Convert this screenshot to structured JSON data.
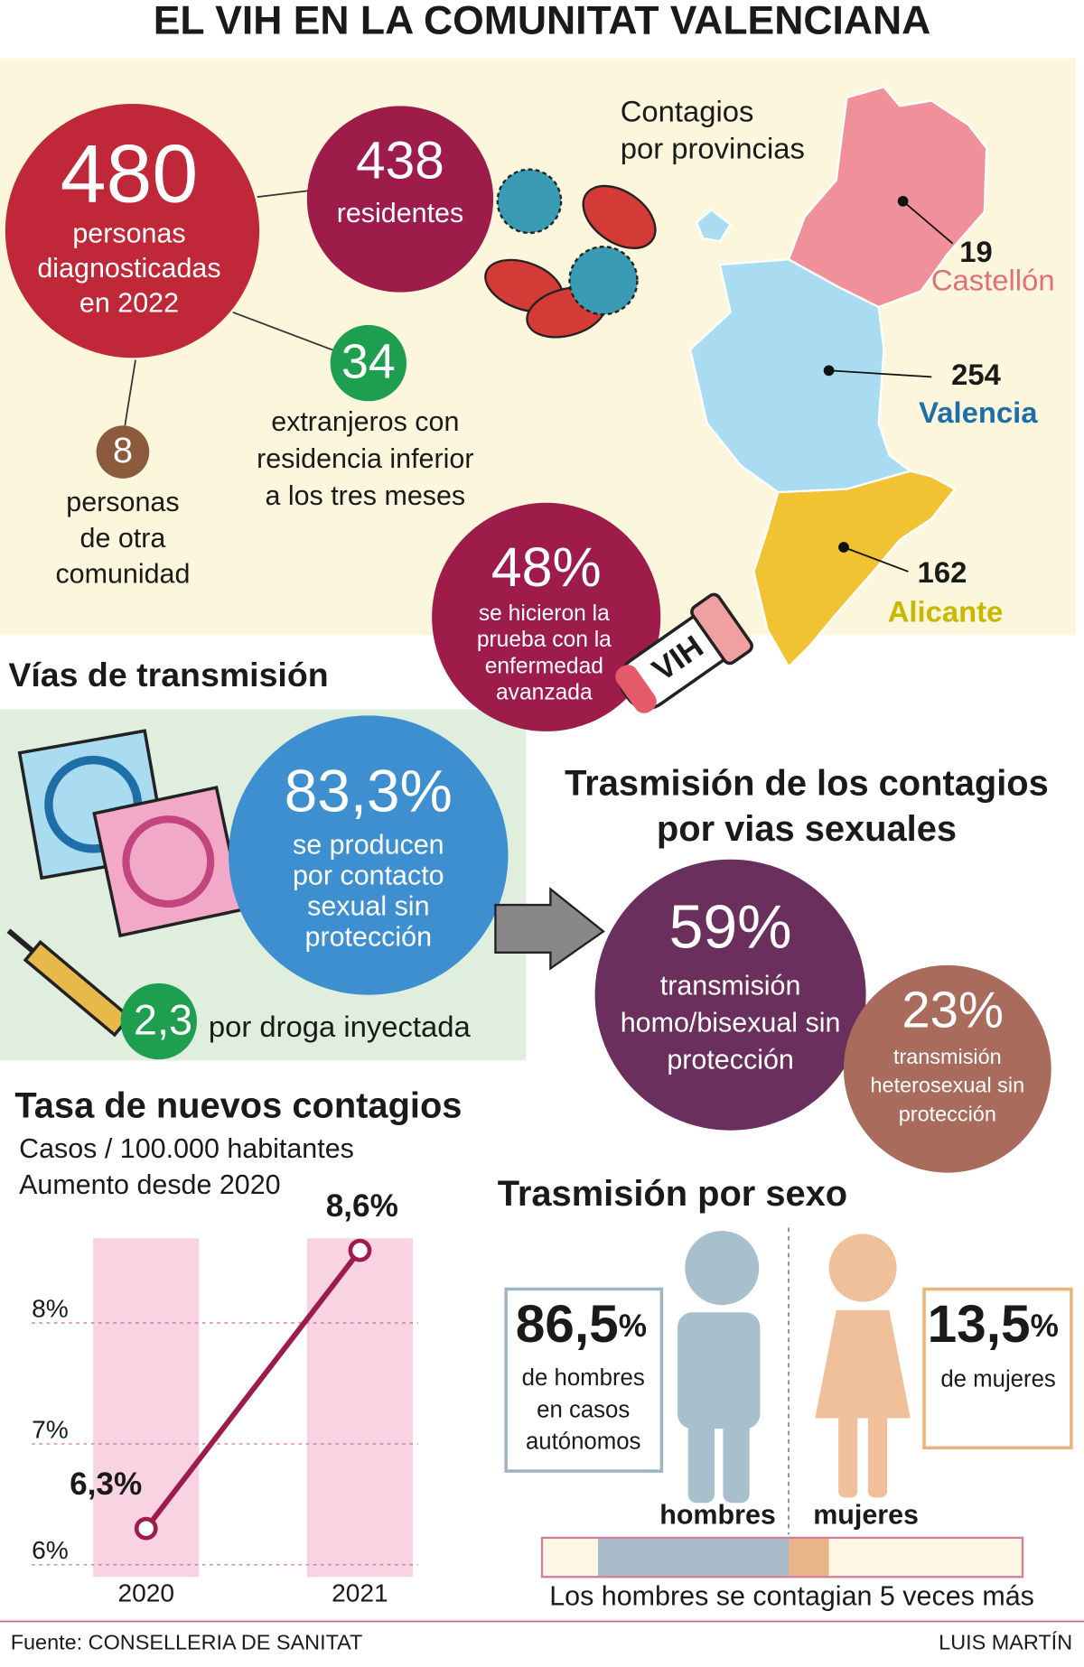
{
  "title": "EL VIH EN LA COMUNITAT VALENCIANA",
  "diagnosis": {
    "total": {
      "number": 480,
      "lines": [
        "personas",
        "diagnosticadas",
        "en 2022"
      ]
    },
    "residents": {
      "number": 438,
      "lines": [
        "residentes"
      ]
    },
    "foreigners": {
      "number": 34,
      "lines": [
        "extranjeros con",
        "residencia  inferior",
        "a los tres meses"
      ]
    },
    "other_community": {
      "number": 8,
      "lines": [
        "personas",
        "de otra",
        "comunidad"
      ]
    },
    "late_diagnosis": {
      "number": "48%",
      "lines": [
        "se hicieron la",
        "prueba con la",
        "enfermedad",
        "avanzada"
      ]
    },
    "test_tube_label": "VIH"
  },
  "provinces": {
    "title_lines": [
      "Contagios",
      "por provincias"
    ],
    "items": [
      {
        "name": "Castellón",
        "cases": 19
      },
      {
        "name": "Valencia",
        "cases": 254
      },
      {
        "name": "Alicante",
        "cases": 162
      }
    ]
  },
  "transmission": {
    "title": "Vías de transmisión",
    "sexual": {
      "number": "83,3%",
      "lines": [
        "se producen",
        "por contacto",
        "sexual sin",
        "protección"
      ]
    },
    "drugs": {
      "number": "2,3",
      "label": "por droga inyectada"
    }
  },
  "sexual_routes": {
    "title_lines": [
      "Trasmisión de los contagios",
      "por vias sexuales"
    ],
    "homo": {
      "number": "59%",
      "lines": [
        "transmisión",
        "homo/bisexual sin",
        "protección"
      ]
    },
    "hetero": {
      "number": "23%",
      "lines": [
        "transmisión",
        "heterosexual sin",
        "protección"
      ]
    }
  },
  "chart_data": {
    "type": "line",
    "title": "Tasa de nuevos contagios",
    "subtitle_lines": [
      "Casos / 100.000 habitantes",
      "Aumento desde 2020"
    ],
    "categories": [
      "2020",
      "2021"
    ],
    "values": [
      6.3,
      8.6
    ],
    "value_labels": [
      "6,3%",
      "8,6%"
    ],
    "color": "#9e1c4a",
    "ylim": [
      5.9,
      8.7
    ],
    "yticks": [
      {
        "value": 6,
        "label": "6%"
      },
      {
        "value": 7,
        "label": "7%"
      },
      {
        "value": 8,
        "label": "8%"
      }
    ],
    "grid": true
  },
  "by_sex": {
    "title": "Trasmisión por sexo",
    "men": {
      "number": "86,5",
      "unit": "%",
      "lines": [
        "de hombres",
        "en casos",
        "autónomos"
      ],
      "label": "hombres"
    },
    "women": {
      "number": "13,5",
      "unit": "%",
      "lines": [
        "de mujeres"
      ],
      "label": "mujeres"
    },
    "note": "Los hombres se contagian 5 veces más"
  },
  "footer": {
    "source": "Fuente: CONSELLERIA DE SANITAT",
    "author": "LUIS MARTÍN"
  }
}
